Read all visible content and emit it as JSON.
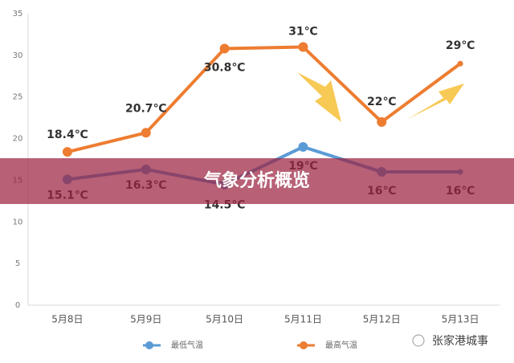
{
  "chart_data": {
    "type": "line",
    "title": "气象分析概览",
    "categories": [
      "5月8日",
      "5月9日",
      "5月10日",
      "5月11日",
      "5月12日",
      "5月13日"
    ],
    "series": [
      {
        "name": "最低气温",
        "color": "#5b9bd5",
        "values": [
          15.1,
          16.3,
          14.5,
          19,
          16,
          16
        ],
        "value_labels": [
          "15.1℃",
          "16.3℃",
          "14.5℃",
          "19℃",
          "16℃",
          "16℃"
        ]
      },
      {
        "name": "最高气温",
        "color": "#ed7d31",
        "values": [
          18.4,
          20.7,
          30.8,
          31,
          22,
          29
        ],
        "value_labels": [
          "18.4℃",
          "20.7℃",
          "30.8℃",
          "31℃",
          "22℃",
          "29℃"
        ]
      }
    ],
    "ylim": [
      0,
      35
    ],
    "yticks": [
      0,
      5,
      10,
      15,
      20,
      25,
      30,
      35
    ],
    "grid": false,
    "source": "张家港城事"
  }
}
